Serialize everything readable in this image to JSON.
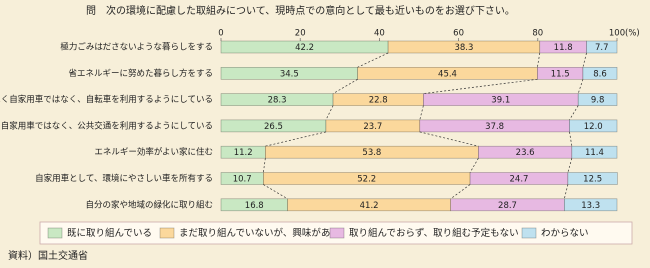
{
  "chart_data": {
    "type": "stacked-bar-horizontal",
    "title": "問　次の環境に配慮した取組みについて、現時点での意向として最も近いものをお選び下さい。",
    "categories": [
      "極力ごみはださないような暮らしをする",
      "省エネルギーに努めた暮らし方をする",
      "なるべく自家用車ではなく、自転車を利用するようにしている",
      "なるべく自家用車ではなく、公共交通を利用するようにしている",
      "エネルギー効率がよい家に住む",
      "自家用車として、環境にやさしい車を所有する",
      "自分の家や地域の緑化に取り組む"
    ],
    "series": [
      {
        "name": "既に取り組んでいる",
        "color": "#c9e8c3",
        "values": [
          42.2,
          34.5,
          28.3,
          26.5,
          11.2,
          10.7,
          16.8
        ],
        "value_labels": [
          "42.2",
          "34.5",
          "28.3",
          "26.5",
          "11.2",
          "10.7",
          "16.8"
        ]
      },
      {
        "name": "まだ取り組んでいないが、興味がある",
        "color": "#fbd89c",
        "values": [
          38.3,
          45.4,
          22.8,
          23.7,
          53.8,
          52.2,
          41.2
        ],
        "value_labels": [
          "38.3",
          "45.4",
          "22.8",
          "23.7",
          "53.8",
          "52.2",
          "41.2"
        ]
      },
      {
        "name": "取り組んでおらず、取り組む予定もない",
        "color": "#e7b9e2",
        "values": [
          11.8,
          11.5,
          39.1,
          37.8,
          23.6,
          24.7,
          28.7
        ],
        "value_labels": [
          "11.8",
          "11.5",
          "39.1",
          "37.8",
          "23.6",
          "24.7",
          "28.7"
        ]
      },
      {
        "name": "わからない",
        "color": "#bfe1ef",
        "values": [
          7.7,
          8.6,
          9.8,
          12.0,
          11.4,
          12.5,
          13.3
        ],
        "value_labels": [
          "7.7",
          "8.6",
          "9.8",
          "12.0",
          "11.4",
          "12.5",
          "13.3"
        ]
      }
    ],
    "xlim": [
      0,
      100
    ],
    "xticks": [
      0,
      20,
      40,
      60,
      80,
      100
    ],
    "x_unit": "(%)",
    "source": "資料）国土交通省"
  }
}
